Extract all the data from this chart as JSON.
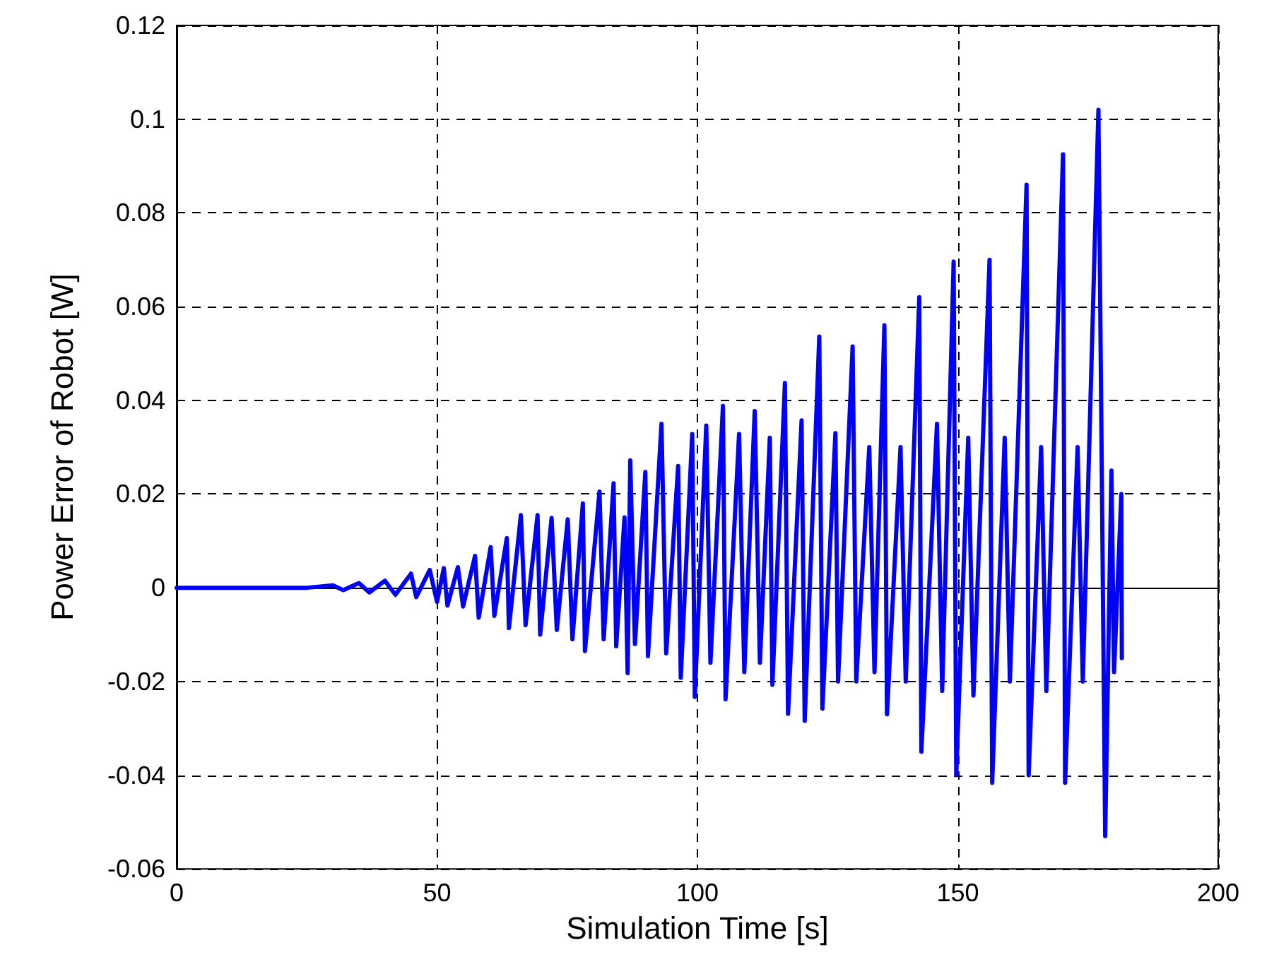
{
  "chart_data": {
    "type": "line",
    "xlabel": "Simulation Time [s]",
    "ylabel": "Power Error of Robot [W]",
    "xlim": [
      0,
      200
    ],
    "xticks": [
      0,
      50,
      100,
      150,
      200
    ],
    "ylim": [
      -0.06,
      0.12
    ],
    "yticks": [
      -0.06,
      -0.04,
      -0.02,
      0,
      0.02,
      0.04,
      0.06,
      0.08,
      0.1,
      0.12
    ],
    "grid": true,
    "marker": "none",
    "line_style": "solid",
    "series": [
      {
        "color": "#0000ff",
        "x": [
          0,
          25,
          30,
          32,
          35,
          37,
          40,
          42,
          45,
          46,
          48.6,
          50,
          51.3,
          52,
          54,
          55,
          57.3,
          58,
          60.3,
          61,
          63.4,
          63.8,
          66.1,
          67,
          69.3,
          69.8,
          72,
          73,
          75.1,
          76,
          78,
          78.4,
          81.2,
          82,
          83.9,
          84.4,
          86,
          86.6,
          87.1,
          88,
          90,
          90.5,
          93.1,
          94,
          96.3,
          96.8,
          99,
          99.5,
          101.7,
          102.5,
          104.9,
          105.4,
          108,
          109,
          111,
          112,
          113.9,
          114.4,
          116.8,
          117.4,
          120,
          120.6,
          123.4,
          124,
          126.5,
          127,
          129.8,
          130.5,
          133,
          134,
          135.9,
          136.4,
          139,
          140,
          142.6,
          143,
          146,
          147,
          149.2,
          149.7,
          152,
          153,
          156.1,
          156.6,
          159,
          160,
          163.2,
          163.6,
          166,
          167,
          170.2,
          170.6,
          173,
          174,
          177,
          178.3,
          179.5,
          180,
          181.4,
          181.5
        ],
        "values": [
          0,
          0,
          0.0005,
          -0.0005,
          0.001,
          -0.001,
          0.0015,
          -0.0015,
          0.003,
          -0.002,
          0.0038,
          -0.003,
          0.0042,
          -0.0038,
          0.0044,
          -0.004,
          0.0068,
          -0.0064,
          0.0087,
          -0.006,
          0.0106,
          -0.0086,
          0.0155,
          -0.008,
          0.0155,
          -0.01,
          0.0149,
          -0.009,
          0.0146,
          -0.011,
          0.018,
          -0.0135,
          0.0205,
          -0.011,
          0.0223,
          -0.0125,
          0.015,
          -0.0182,
          0.0272,
          -0.012,
          0.0247,
          -0.0146,
          0.035,
          -0.014,
          0.026,
          -0.0192,
          0.0328,
          -0.0233,
          0.0346,
          -0.016,
          0.0388,
          -0.0238,
          0.0328,
          -0.018,
          0.0377,
          -0.016,
          0.032,
          -0.0207,
          0.0437,
          -0.0269,
          0.0357,
          -0.0284,
          0.0536,
          -0.0258,
          0.033,
          -0.02,
          0.0515,
          -0.02,
          0.03,
          -0.018,
          0.056,
          -0.027,
          0.03,
          -0.02,
          0.062,
          -0.035,
          0.035,
          -0.022,
          0.0696,
          -0.04,
          0.032,
          -0.023,
          0.07,
          -0.0416,
          0.032,
          -0.02,
          0.086,
          -0.04,
          0.03,
          -0.022,
          0.0925,
          -0.0416,
          0.03,
          -0.02,
          0.102,
          -0.053,
          0.025,
          -0.018,
          0.02,
          -0.015
        ]
      }
    ]
  }
}
